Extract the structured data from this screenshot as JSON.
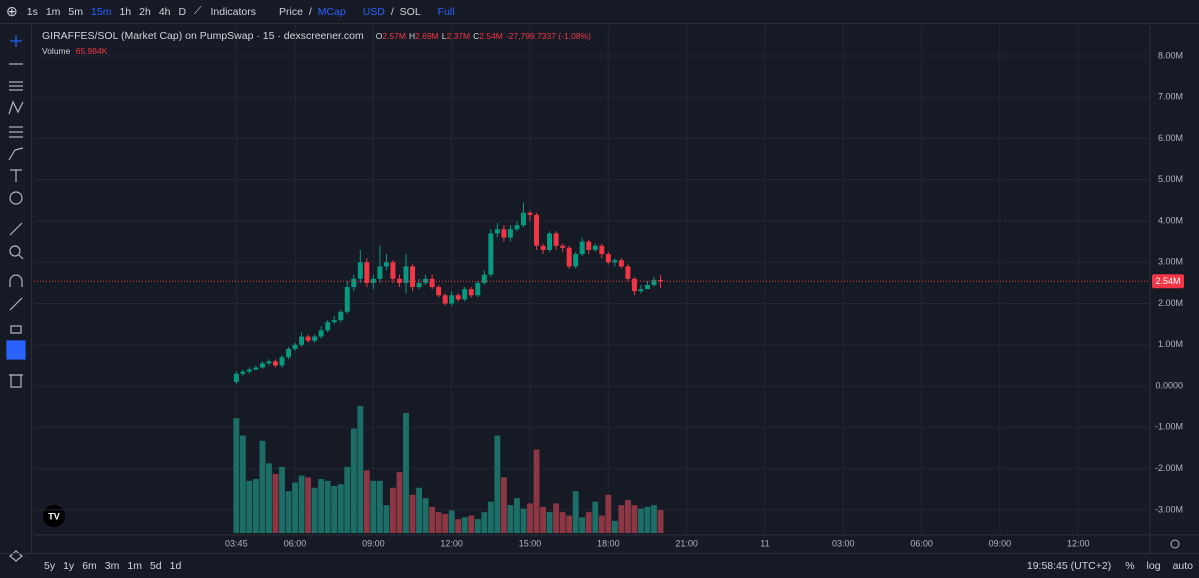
{
  "toolbar": {
    "intervals": [
      "1s",
      "1m",
      "5m",
      "15m",
      "1h",
      "2h",
      "4h",
      "D"
    ],
    "active_interval": 3,
    "indicators": "Indicators",
    "price": "Price",
    "slash_price": "/",
    "mcap": "MCap",
    "usd": "USD",
    "slash_currency": "/",
    "sol": "SOL",
    "full": "Full"
  },
  "legend": {
    "symbol": "GIRAFFES/SOL (Market Cap) on PumpSwap · 15 · dexscreener.com",
    "o": "O",
    "o_value": "2.57M",
    "h": "H",
    "h_value": "2.69M",
    "l": "L",
    "l_value": "2.37M",
    "c": "C",
    "c_value": "2.54M",
    "change": "-27,799.7337 (-1.08%)",
    "volume": "Volume",
    "volume_value": "65.984K"
  },
  "chart_data": {
    "type": "candlestick",
    "open": [
      100000,
      300000,
      350000,
      400000,
      450000,
      550000,
      600000,
      500000,
      700000,
      900000,
      1000000,
      1200000,
      1100000,
      1200000,
      1350000,
      1550000,
      1600000,
      1800000,
      2400000,
      2600000,
      3000000,
      2500000,
      2600000,
      2900000,
      3000000,
      2600000,
      2500000,
      2900000,
      2400000,
      2500000,
      2600000,
      2400000,
      2200000,
      2000000,
      2200000,
      2100000,
      2350000,
      2200000,
      2500000,
      2700000,
      3700000,
      3800000,
      3600000,
      3800000,
      3900000,
      4200000,
      4150000,
      3400000,
      3300000,
      3700000,
      3400000,
      3350000,
      2900000,
      3200000,
      3500000,
      3300000,
      3400000,
      3200000,
      3000000,
      3050000,
      2900000,
      2600000,
      2300000,
      2350000,
      2450000,
      2570000
    ],
    "high": [
      350000,
      400000,
      450000,
      500000,
      600000,
      650000,
      650000,
      750000,
      950000,
      1050000,
      1300000,
      1250000,
      1250000,
      1450000,
      1600000,
      1700000,
      1850000,
      2550000,
      2700000,
      3300000,
      3100000,
      2700000,
      3400000,
      3200000,
      3050000,
      2700000,
      3200000,
      2950000,
      2600000,
      2700000,
      2700000,
      2450000,
      2250000,
      2300000,
      2250000,
      2400000,
      2400000,
      2550000,
      2800000,
      3800000,
      3950000,
      3900000,
      3900000,
      4000000,
      4450000,
      4250000,
      4200000,
      3450000,
      3750000,
      3750000,
      3450000,
      3400000,
      3250000,
      3600000,
      3550000,
      3450000,
      3450000,
      3250000,
      3100000,
      3100000,
      2950000,
      2650000,
      2450000,
      2550000,
      2650000,
      2690000
    ],
    "low": [
      50000,
      250000,
      300000,
      380000,
      420000,
      500000,
      450000,
      450000,
      650000,
      850000,
      950000,
      1050000,
      1050000,
      1150000,
      1300000,
      1500000,
      1550000,
      1750000,
      2300000,
      2500000,
      2400000,
      2350000,
      2500000,
      2800000,
      2500000,
      2400000,
      2250000,
      2300000,
      2350000,
      2450000,
      2350000,
      2150000,
      1950000,
      1950000,
      2050000,
      2050000,
      2150000,
      2150000,
      2450000,
      2650000,
      3600000,
      3500000,
      3500000,
      3750000,
      3850000,
      4000000,
      3300000,
      3200000,
      3250000,
      3300000,
      3250000,
      2850000,
      2850000,
      3150000,
      3200000,
      3250000,
      3100000,
      2950000,
      2900000,
      2850000,
      2550000,
      2200000,
      2250000,
      2350000,
      2400000,
      2370000
    ],
    "close": [
      300000,
      350000,
      400000,
      450000,
      550000,
      600000,
      500000,
      700000,
      900000,
      1000000,
      1200000,
      1100000,
      1200000,
      1350000,
      1550000,
      1600000,
      1800000,
      2400000,
      2600000,
      3000000,
      2500000,
      2600000,
      2900000,
      3000000,
      2600000,
      2500000,
      2900000,
      2400000,
      2500000,
      2600000,
      2400000,
      2200000,
      2000000,
      2200000,
      2100000,
      2350000,
      2200000,
      2500000,
      2700000,
      3700000,
      3800000,
      3600000,
      3800000,
      3900000,
      4200000,
      4150000,
      3400000,
      3300000,
      3700000,
      3400000,
      3350000,
      2900000,
      3200000,
      3500000,
      3300000,
      3400000,
      3200000,
      3000000,
      3050000,
      2900000,
      2600000,
      2300000,
      2350000,
      2450000,
      2570000,
      2540000
    ],
    "volume": [
      330000,
      280000,
      150000,
      155000,
      265000,
      200000,
      170000,
      190000,
      120000,
      145000,
      165000,
      160000,
      130000,
      155000,
      150000,
      135000,
      140000,
      190000,
      300000,
      365000,
      180000,
      150000,
      150000,
      80000,
      130000,
      175000,
      345000,
      110000,
      130000,
      100000,
      75000,
      60000,
      55000,
      65000,
      40000,
      45000,
      50000,
      40000,
      60000,
      90000,
      280000,
      160000,
      80000,
      100000,
      70000,
      85000,
      240000,
      75000,
      60000,
      85000,
      60000,
      50000,
      120000,
      45000,
      60000,
      90000,
      50000,
      110000,
      35000,
      80000,
      95000,
      80000,
      70000,
      75000,
      80000,
      65984
    ],
    "up_color": "#089981",
    "down_color": "#f23645",
    "volume_up_color": "#1d6e66",
    "volume_down_color": "#8c3743",
    "xlim": [
      -31,
      140
    ],
    "xticks": [
      {
        "value": 0,
        "label": "03:45"
      },
      {
        "value": 9,
        "label": "06:00"
      },
      {
        "value": 21,
        "label": "09:00"
      },
      {
        "value": 33,
        "label": "12:00"
      },
      {
        "value": 45,
        "label": "15:00"
      },
      {
        "value": 57,
        "label": "18:00"
      },
      {
        "value": 69,
        "label": "21:00"
      },
      {
        "value": 81,
        "label": "11"
      },
      {
        "value": 93,
        "label": "03:00"
      },
      {
        "value": 105,
        "label": "06:00"
      },
      {
        "value": 117,
        "label": "09:00"
      },
      {
        "value": 129,
        "label": "12:00"
      }
    ],
    "ylim": [
      -3560000,
      8750000
    ],
    "yticks": [
      {
        "value": 8000000,
        "label": "8.00M"
      },
      {
        "value": 7000000,
        "label": "7.00M"
      },
      {
        "value": 6000000,
        "label": "6.00M"
      },
      {
        "value": 5000000,
        "label": "5.00M"
      },
      {
        "value": 4000000,
        "label": "4.00M"
      },
      {
        "value": 3000000,
        "label": "3.00M"
      },
      {
        "value": 2000000,
        "label": "2.00M"
      },
      {
        "value": 1000000,
        "label": "1.00M"
      },
      {
        "value": 0,
        "label": "0.0000"
      },
      {
        "value": -1000000,
        "label": "-1.00M"
      },
      {
        "value": -2000000,
        "label": "-2.00M"
      },
      {
        "value": -3000000,
        "label": "-3.00M"
      }
    ],
    "last_price": {
      "value": 2540000,
      "label": "2.54M"
    },
    "grid": true
  },
  "footer": {
    "ranges": [
      "5y",
      "1y",
      "6m",
      "3m",
      "1m",
      "5d",
      "1d"
    ],
    "time": "19:58:45 (UTC+2)",
    "percent": "%",
    "log": "log",
    "auto": "auto"
  }
}
